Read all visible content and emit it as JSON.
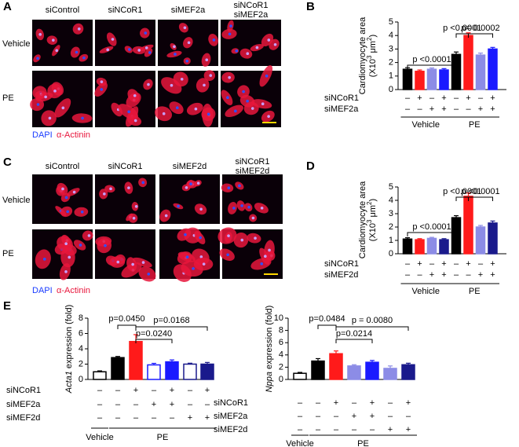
{
  "panel_letters": [
    "A",
    "B",
    "C",
    "D",
    "E"
  ],
  "image_panels": [
    {
      "columns": [
        [
          "siControl"
        ],
        [
          "siNCoR1"
        ],
        [
          "siMEF2a"
        ],
        [
          "siNCoR1",
          "siMEF2a"
        ]
      ],
      "rows": [
        "Vehicle",
        "PE"
      ],
      "legend": [
        "DAPI",
        "α-Actinin"
      ]
    },
    {
      "columns": [
        [
          "siControl"
        ],
        [
          "siNCoR1"
        ],
        [
          "siMEF2d"
        ],
        [
          "siNCoR1",
          "siMEF2d"
        ]
      ],
      "rows": [
        "Vehicle",
        "PE"
      ],
      "legend": [
        "DAPI",
        "α-Actinin"
      ]
    }
  ],
  "chart_data": [
    {
      "type": "bar",
      "ylabel": [
        [
          "Cardiomyocyte area"
        ],
        [
          "(X10",
          "3",
          " μm",
          "2",
          ")"
        ]
      ],
      "values": [
        1.5,
        1.35,
        1.5,
        1.45,
        2.6,
        4.0,
        2.55,
        3.0
      ],
      "errors": [
        0.12,
        0.1,
        0.1,
        0.1,
        0.18,
        0.2,
        0.15,
        0.12
      ],
      "colors": [
        "#000000",
        "#ff1a1a",
        "#8c8ce6",
        "#1a1aff",
        "#000000",
        "#ff1a1a",
        "#8c8ce6",
        "#1a1aff"
      ],
      "edge_colors": [
        "#000000",
        "#ff1a1a",
        "#8c8ce6",
        "#1a1aff",
        "#000000",
        "#ff1a1a",
        "#8c8ce6",
        "#1a1aff"
      ],
      "ylim": [
        0,
        5
      ],
      "yticks": [
        0,
        1,
        2,
        3,
        4,
        5
      ],
      "rows": [
        {
          "name": "siNCoR1",
          "signs": [
            "–",
            "+",
            "–",
            "+",
            "–",
            "+",
            "–",
            "+"
          ]
        },
        {
          "name": "siMEF2a",
          "signs": [
            "–",
            "–",
            "+",
            "+",
            "–",
            "–",
            "+",
            "+"
          ]
        }
      ],
      "groups": [
        "Vehicle",
        "PE"
      ],
      "annotations": [
        "p <0.0001",
        "p <0.0001",
        "p= 0.0002"
      ]
    },
    {
      "type": "bar",
      "ylabel": [
        [
          "Cardiomyocyte area"
        ],
        [
          "(X10",
          "3",
          " μm",
          "2",
          ")"
        ]
      ],
      "values": [
        1.1,
        1.05,
        1.15,
        1.05,
        2.7,
        4.3,
        2.0,
        2.3
      ],
      "errors": [
        0.1,
        0.08,
        0.08,
        0.08,
        0.15,
        0.25,
        0.12,
        0.15
      ],
      "colors": [
        "#000000",
        "#ff1a1a",
        "#8c8ce6",
        "#1a1a8c",
        "#000000",
        "#ff1a1a",
        "#8c8ce6",
        "#1a1a8c"
      ],
      "edge_colors": [
        "#000000",
        "#ff1a1a",
        "#8c8ce6",
        "#1a1a8c",
        "#000000",
        "#ff1a1a",
        "#8c8ce6",
        "#1a1a8c"
      ],
      "ylim": [
        0,
        5
      ],
      "yticks": [
        0,
        1,
        2,
        3,
        4,
        5
      ],
      "rows": [
        {
          "name": "siNCoR1",
          "signs": [
            "–",
            "+",
            "–",
            "+",
            "–",
            "+",
            "–",
            "+"
          ]
        },
        {
          "name": "siMEF2d",
          "signs": [
            "–",
            "–",
            "+",
            "+",
            "–",
            "–",
            "+",
            "+"
          ]
        }
      ],
      "groups": [
        "Vehicle",
        "PE"
      ],
      "annotations": [
        "p <0.0001",
        "p <0.0001",
        "p <0.0001"
      ]
    },
    {
      "type": "bar",
      "ylabel": [
        [
          "Acta1",
          " expression (fold)"
        ]
      ],
      "values": [
        1.0,
        2.85,
        4.95,
        1.9,
        2.3,
        2.0,
        2.0
      ],
      "errors": [
        0.12,
        0.15,
        0.9,
        0.2,
        0.25,
        0.12,
        0.22
      ],
      "colors": [
        "#ffffff",
        "#000000",
        "#ff1a1a",
        "#ffffff",
        "#1a1aff",
        "#ffffff",
        "#1a1a8c"
      ],
      "edge_colors": [
        "#000000",
        "#000000",
        "#ff1a1a",
        "#1a1aff",
        "#1a1aff",
        "#1a1a8c",
        "#1a1a8c"
      ],
      "ylim": [
        0,
        8
      ],
      "yticks": [
        0,
        2,
        4,
        6,
        8
      ],
      "rows": [
        {
          "name": "siNCoR1",
          "signs": [
            "–",
            "–",
            "+",
            "–",
            "+",
            "–",
            "+"
          ]
        },
        {
          "name": "siMEF2a",
          "signs": [
            "–",
            "–",
            "–",
            "+",
            "+",
            "–",
            "–"
          ]
        },
        {
          "name": "siMEF2d",
          "signs": [
            "–",
            "–",
            "–",
            "–",
            "–",
            "+",
            "+"
          ]
        }
      ],
      "groups": [
        "Vehicle",
        "PE"
      ],
      "annotations": [
        "p=0.0450",
        "p=0.0240",
        "p=0.0168"
      ]
    },
    {
      "type": "bar",
      "ylabel": [
        [
          "Nppa",
          " expression (fold)"
        ]
      ],
      "values": [
        1.0,
        3.0,
        4.2,
        2.2,
        2.8,
        1.8,
        2.4
      ],
      "errors": [
        0.15,
        0.4,
        0.45,
        0.2,
        0.3,
        0.4,
        0.25
      ],
      "colors": [
        "#ffffff",
        "#000000",
        "#ff1a1a",
        "#8c8ce6",
        "#1a1aff",
        "#8c8ce6",
        "#1a1a8c"
      ],
      "edge_colors": [
        "#000000",
        "#000000",
        "#ff1a1a",
        "#8c8ce6",
        "#1a1aff",
        "#8c8ce6",
        "#1a1a8c"
      ],
      "ylim": [
        0,
        10
      ],
      "yticks": [
        0,
        2,
        4,
        6,
        8,
        10
      ],
      "rows": [
        {
          "name": "siNCoR1",
          "signs": [
            "–",
            "–",
            "+",
            "–",
            "+",
            "–",
            "+"
          ]
        },
        {
          "name": "siMEF2a",
          "signs": [
            "–",
            "–",
            "–",
            "+",
            "+",
            "–",
            "–"
          ]
        },
        {
          "name": "siMEF2d",
          "signs": [
            "–",
            "–",
            "–",
            "–",
            "–",
            "+",
            "+"
          ]
        }
      ],
      "groups": [
        "Vehicle",
        "PE"
      ],
      "annotations": [
        "p=0.0484",
        "p=0.0214",
        "p = 0.0080"
      ]
    }
  ]
}
